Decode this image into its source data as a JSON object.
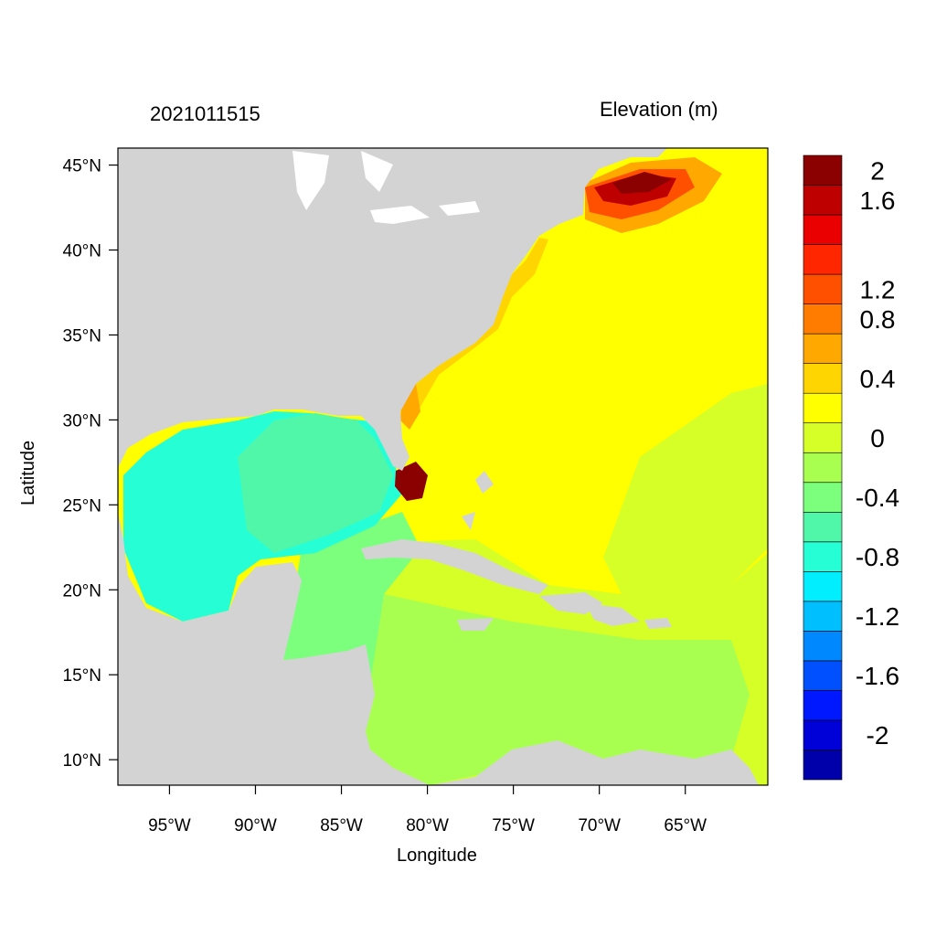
{
  "map": {
    "left_title": "2021011515",
    "right_title": "Elevation (m)",
    "x_axis_title": "Longitude",
    "y_axis_title": "Latitude",
    "lon_range": [
      -98,
      -60.2
    ],
    "lat_range": [
      8.5,
      46
    ],
    "lon_ticks": [
      {
        "value": -95,
        "label": "95°W"
      },
      {
        "value": -90,
        "label": "90°W"
      },
      {
        "value": -85,
        "label": "85°W"
      },
      {
        "value": -80,
        "label": "80°W"
      },
      {
        "value": -75,
        "label": "75°W"
      },
      {
        "value": -70,
        "label": "70°W"
      },
      {
        "value": -65,
        "label": "65°W"
      }
    ],
    "lat_ticks": [
      {
        "value": 45,
        "label": "45°N"
      },
      {
        "value": 40,
        "label": "40°N"
      },
      {
        "value": 35,
        "label": "35°N"
      },
      {
        "value": 30,
        "label": "30°N"
      },
      {
        "value": 25,
        "label": "25°N"
      },
      {
        "value": 20,
        "label": "20°N"
      },
      {
        "value": 15,
        "label": "15°N"
      },
      {
        "value": 10,
        "label": "10°N"
      }
    ],
    "land_color": "#d3d3d3"
  },
  "colorbar": {
    "colors": [
      "#0000aa",
      "#0000d8",
      "#0018ff",
      "#0050ff",
      "#0088ff",
      "#00bfff",
      "#00eeff",
      "#26ffd5",
      "#50f7a8",
      "#7cff7c",
      "#a8ff50",
      "#d5ff26",
      "#ffff00",
      "#ffd500",
      "#ffa800",
      "#ff7c00",
      "#ff5000",
      "#ff2600",
      "#ea0000",
      "#bf0000",
      "#8b0000"
    ],
    "labels": [
      {
        "value": -2,
        "label": "-2"
      },
      {
        "value": -1.6,
        "label": "-1.6"
      },
      {
        "value": -1.2,
        "label": "-1.2"
      },
      {
        "value": -0.8,
        "label": "-0.8"
      },
      {
        "value": -0.4,
        "label": "-0.4"
      },
      {
        "value": 0,
        "label": "0"
      },
      {
        "value": 0.4,
        "label": "0.4"
      },
      {
        "value": 0.8,
        "label": "0.8"
      },
      {
        "value": 1.2,
        "label": "1.2"
      },
      {
        "value": 1.6,
        "label": "1.6"
      },
      {
        "value": 2,
        "label": "2"
      }
    ]
  }
}
